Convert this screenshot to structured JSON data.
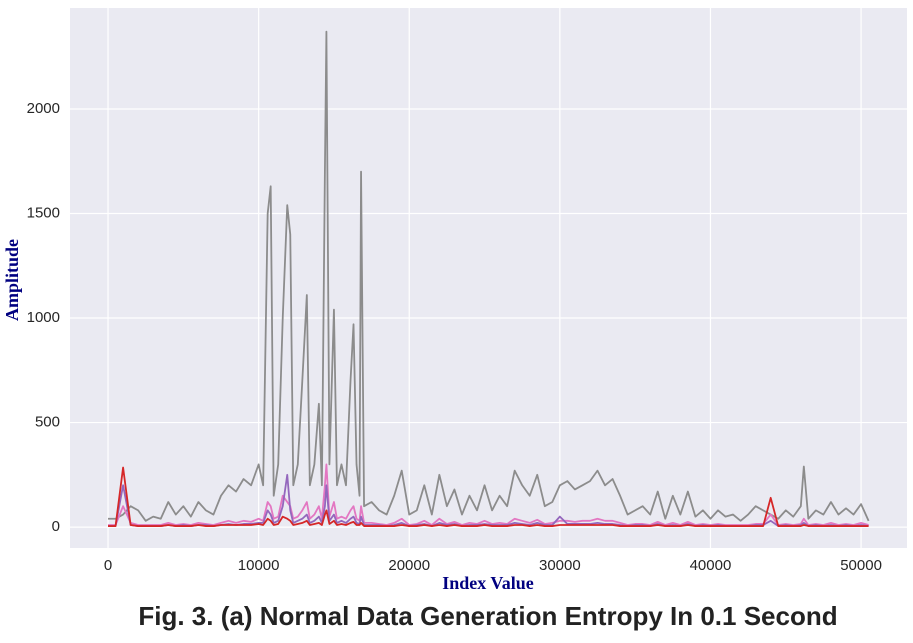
{
  "chart_data": {
    "type": "line",
    "title": "Fig. 3. (a) Normal Data Generation Entropy In 0.1 Second",
    "xlabel": "Index Value",
    "ylabel": "Amplitude",
    "xlim": [
      -2525,
      53050
    ],
    "ylim": [
      -100,
      2483
    ],
    "xticks": [
      0,
      10000,
      20000,
      30000,
      40000,
      50000
    ],
    "yticks": [
      0,
      500,
      1000,
      1500,
      2000
    ],
    "grid": true,
    "x": [
      0,
      500,
      1000,
      1500,
      2000,
      2500,
      3000,
      3500,
      4000,
      4500,
      5000,
      5500,
      6000,
      6500,
      7000,
      7500,
      8000,
      8500,
      9000,
      9500,
      10000,
      10300,
      10600,
      10800,
      11000,
      11300,
      11600,
      11900,
      12100,
      12300,
      12600,
      12900,
      13200,
      13400,
      13700,
      14000,
      14200,
      14400,
      14500,
      14700,
      15000,
      15200,
      15500,
      15800,
      16100,
      16300,
      16500,
      16700,
      16800,
      17000,
      17500,
      18000,
      18500,
      19000,
      19500,
      20000,
      20500,
      21000,
      21500,
      22000,
      22500,
      23000,
      23500,
      24000,
      24500,
      25000,
      25500,
      26000,
      26500,
      27000,
      27500,
      28000,
      28500,
      29000,
      29500,
      30000,
      30500,
      31000,
      31500,
      32000,
      32500,
      33000,
      33500,
      34000,
      34500,
      35000,
      35500,
      36000,
      36500,
      37000,
      37500,
      38000,
      38500,
      39000,
      39500,
      40000,
      40500,
      41000,
      41500,
      42000,
      42500,
      43000,
      43500,
      44000,
      44500,
      45000,
      45500,
      46000,
      46200,
      46500,
      47000,
      47500,
      48000,
      48500,
      49000,
      49500,
      50000,
      50500
    ],
    "series": [
      {
        "color": "#8c8c8c",
        "values": [
          40,
          40,
          60,
          100,
          80,
          30,
          50,
          40,
          120,
          60,
          100,
          50,
          120,
          80,
          60,
          150,
          200,
          170,
          230,
          200,
          300,
          200,
          1500,
          1630,
          150,
          300,
          1000,
          1540,
          1400,
          200,
          300,
          700,
          1110,
          200,
          300,
          590,
          200,
          1700,
          2370,
          300,
          1040,
          200,
          300,
          200,
          700,
          970,
          300,
          150,
          1700,
          100,
          120,
          80,
          60,
          150,
          270,
          60,
          80,
          200,
          60,
          250,
          100,
          180,
          60,
          150,
          80,
          200,
          80,
          150,
          100,
          270,
          200,
          150,
          250,
          100,
          120,
          200,
          220,
          180,
          200,
          220,
          270,
          200,
          230,
          150,
          60,
          80,
          100,
          60,
          170,
          40,
          150,
          60,
          170,
          50,
          80,
          40,
          80,
          50,
          60,
          30,
          60,
          100,
          80,
          60,
          40,
          80,
          50,
          100,
          290,
          40,
          80,
          60,
          120,
          60,
          90,
          60,
          110,
          30
        ]
      },
      {
        "color": "#e377c2",
        "values": [
          10,
          10,
          100,
          20,
          10,
          10,
          10,
          10,
          20,
          10,
          15,
          10,
          20,
          15,
          10,
          20,
          30,
          20,
          30,
          25,
          40,
          30,
          120,
          100,
          40,
          50,
          150,
          120,
          100,
          40,
          50,
          80,
          120,
          40,
          60,
          100,
          40,
          200,
          300,
          50,
          120,
          40,
          50,
          40,
          80,
          100,
          40,
          30,
          100,
          20,
          20,
          15,
          10,
          20,
          40,
          10,
          15,
          30,
          10,
          40,
          15,
          25,
          10,
          20,
          15,
          30,
          15,
          20,
          15,
          40,
          30,
          20,
          35,
          15,
          20,
          30,
          30,
          25,
          30,
          30,
          40,
          30,
          30,
          20,
          10,
          15,
          15,
          10,
          25,
          10,
          20,
          10,
          25,
          10,
          15,
          10,
          15,
          10,
          10,
          10,
          10,
          15,
          15,
          60,
          10,
          15,
          10,
          15,
          40,
          10,
          15,
          10,
          20,
          10,
          15,
          10,
          20,
          10
        ]
      },
      {
        "color": "#9467bd",
        "values": [
          5,
          5,
          200,
          10,
          5,
          5,
          5,
          5,
          10,
          5,
          10,
          5,
          10,
          10,
          5,
          10,
          15,
          10,
          15,
          15,
          20,
          20,
          80,
          60,
          20,
          30,
          100,
          250,
          80,
          20,
          30,
          40,
          60,
          20,
          30,
          50,
          20,
          100,
          200,
          30,
          60,
          20,
          30,
          20,
          40,
          50,
          20,
          15,
          50,
          10,
          10,
          10,
          5,
          10,
          20,
          5,
          10,
          15,
          5,
          20,
          10,
          15,
          5,
          10,
          10,
          15,
          10,
          10,
          10,
          20,
          15,
          10,
          20,
          10,
          10,
          50,
          15,
          15,
          15,
          15,
          20,
          15,
          15,
          10,
          5,
          10,
          10,
          5,
          15,
          5,
          10,
          5,
          15,
          5,
          10,
          5,
          10,
          5,
          5,
          5,
          5,
          10,
          10,
          30,
          5,
          10,
          5,
          10,
          20,
          5,
          10,
          5,
          10,
          5,
          10,
          5,
          10,
          5
        ]
      },
      {
        "color": "#d62728",
        "values": [
          5,
          5,
          285,
          10,
          5,
          5,
          5,
          5,
          10,
          5,
          5,
          5,
          10,
          5,
          5,
          10,
          10,
          10,
          10,
          10,
          15,
          10,
          40,
          30,
          10,
          15,
          50,
          40,
          30,
          10,
          15,
          20,
          30,
          10,
          15,
          20,
          10,
          60,
          80,
          15,
          30,
          10,
          15,
          10,
          20,
          25,
          10,
          10,
          20,
          5,
          5,
          5,
          5,
          5,
          10,
          5,
          5,
          10,
          5,
          10,
          5,
          10,
          5,
          5,
          5,
          10,
          5,
          5,
          5,
          10,
          10,
          5,
          10,
          5,
          5,
          10,
          10,
          10,
          10,
          10,
          10,
          10,
          10,
          5,
          5,
          5,
          5,
          5,
          10,
          5,
          5,
          5,
          10,
          5,
          5,
          5,
          5,
          5,
          5,
          5,
          5,
          5,
          5,
          140,
          5,
          5,
          5,
          5,
          10,
          5,
          5,
          5,
          5,
          5,
          5,
          5,
          5,
          5
        ]
      }
    ]
  }
}
